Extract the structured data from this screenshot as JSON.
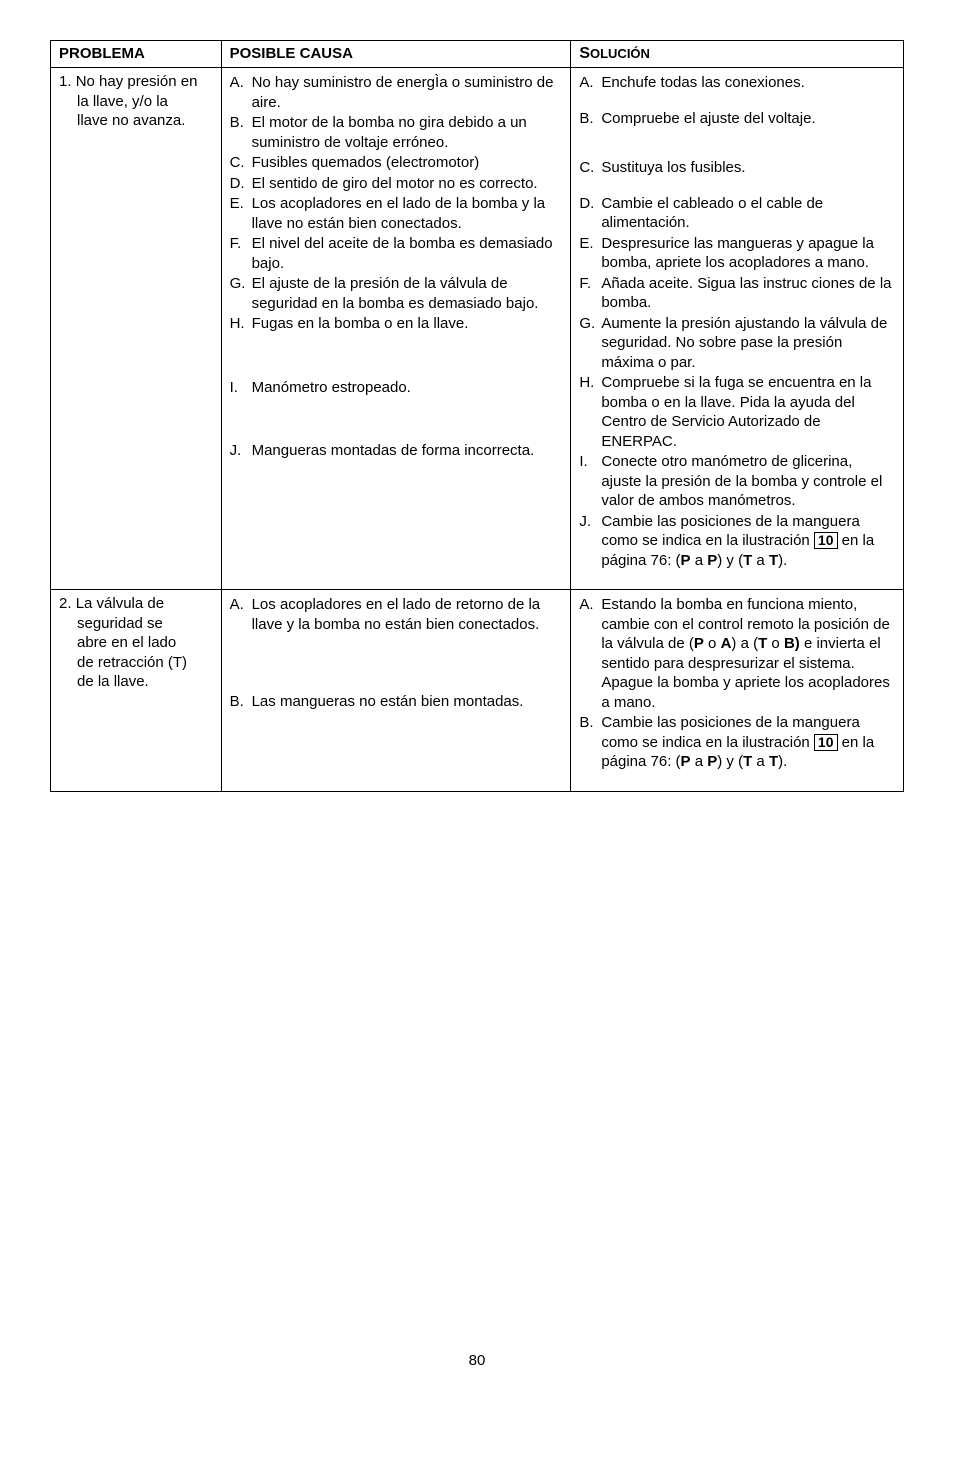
{
  "headers": {
    "problema": "PROBLEMA",
    "causa": "POSIBLE CAUSA",
    "solucion_prefix": "S",
    "solucion_rest": "OLUCIÓN"
  },
  "row1": {
    "problema_line1_marker": "1.",
    "problema_line1_text": "No hay presión en",
    "problema_line2": "la llave, y/o la",
    "problema_line3": "llave no avanza.",
    "causa_A_m": "A.",
    "causa_A": "No hay suministro de energÌa o suministro de aire.",
    "causa_B_m": "B.",
    "causa_B": "El motor de la bomba no gira debido a un suministro de voltaje erróneo.",
    "causa_C_m": "C.",
    "causa_C": "Fusibles quemados (electromotor)",
    "causa_D_m": "D.",
    "causa_D": "El sentido de giro del motor no es correcto.",
    "causa_E_m": "E.",
    "causa_E": "Los acopladores en el lado de la bomba y la llave no están bien conectados.",
    "causa_F_m": "F.",
    "causa_F": "El nivel del aceite de la bomba es demasiado bajo.",
    "causa_G_m": "G.",
    "causa_G": "El ajuste de la presión de la válvula de seguridad en la bomba es demasiado bajo.",
    "causa_H_m": "H.",
    "causa_H": "Fugas en la bomba o en la llave.",
    "causa_I_m": "I.",
    "causa_I": "Manómetro estropeado.",
    "causa_J_m": "J.",
    "causa_J": "Mangueras montadas de forma incorrecta.",
    "sol_A_m": "A.",
    "sol_A": "Enchufe todas las conexiones.",
    "sol_B_m": "B.",
    "sol_B": "Compruebe el ajuste del voltaje.",
    "sol_C_m": "C.",
    "sol_C": "Sustituya los fusibles.",
    "sol_D_m": "D.",
    "sol_D": "Cambie el cableado o el cable de alimentación.",
    "sol_E_m": "E.",
    "sol_E": "Despresurice las mangueras y apague la bomba, apriete los acopladores a mano.",
    "sol_F_m": "F.",
    "sol_F": "Añada aceite. Sigua las instruc ciones de la bomba.",
    "sol_G_m": "G.",
    "sol_G": "Aumente la presión ajustando la válvula de seguridad. No sobre pase la presión máxima o par.",
    "sol_H_m": "H.",
    "sol_H": "Compruebe si la fuga se encuentra en la bomba o en la llave. Pida la ayuda del Centro de Servicio Autorizado de ENERPAC.",
    "sol_I_m": "I.",
    "sol_I": "Conecte otro manómetro de glicerina, ajuste la presión de la bomba y controle el valor de ambos manómetros.",
    "sol_J_m": "J.",
    "sol_J_pre": "Cambie las posiciones de la manguera como se indica en la ilustración ",
    "sol_J_box": "10",
    "sol_J_post1": " en la página 76: (",
    "sol_J_bold1": "P",
    "sol_J_post2": " a ",
    "sol_J_bold2": "P",
    "sol_J_post3": ") y (",
    "sol_J_bold3": "T",
    "sol_J_post4": " a ",
    "sol_J_bold4": "T",
    "sol_J_post5": ")."
  },
  "row2": {
    "problema_line1_marker": "2.",
    "problema_line1_text": "La válvula de",
    "problema_line2": "seguridad se",
    "problema_line3": "abre en el lado",
    "problema_line4": "de retracción (T)",
    "problema_line5": "de la llave.",
    "causa_A_m": "A.",
    "causa_A": "Los acopladores en el lado de retorno de la llave y la bomba no están bien conectados.",
    "causa_B_m": "B.",
    "causa_B": "Las mangueras no están bien montadas.",
    "sol_A_m": "A.",
    "sol_A_pre": "Estando la bomba en funciona miento, cambie con el control remoto la posición de la válvula de (",
    "sol_A_b1": "P",
    "sol_A_t1": " o ",
    "sol_A_b2": "A",
    "sol_A_t2": ") a (",
    "sol_A_b3": "T",
    "sol_A_t3": " o ",
    "sol_A_b4": "B)",
    "sol_A_post": " e invierta el sentido para despresurizar el sistema. Apague la bomba y apriete los acopladores a mano.",
    "sol_B_m": "B.",
    "sol_B_pre": "Cambie las posiciones de la manguera como se indica en la ilustración ",
    "sol_B_box": "10",
    "sol_B_post1": " en la página 76: (",
    "sol_B_bold1": "P",
    "sol_B_post2": " a ",
    "sol_B_bold2": "P",
    "sol_B_post3": ") y (",
    "sol_B_bold3": "T",
    "sol_B_post4": " a ",
    "sol_B_bold4": "T",
    "sol_B_post5": ")."
  },
  "page_number": "80"
}
